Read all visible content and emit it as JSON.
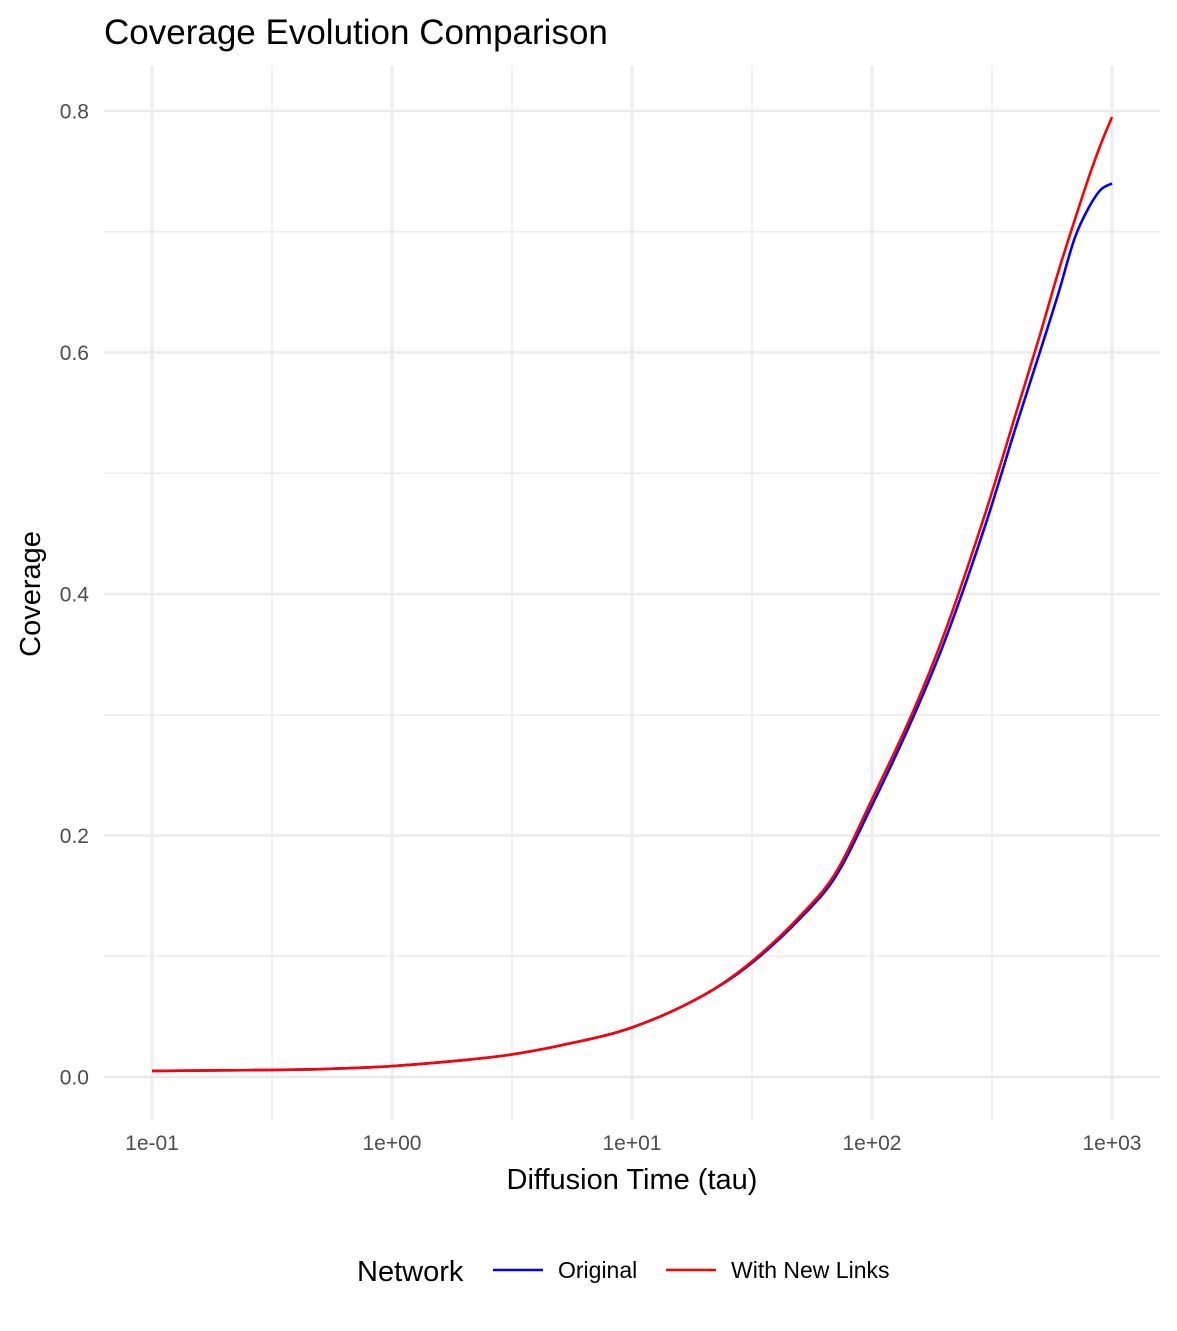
{
  "chart_data": {
    "type": "line",
    "title": "Coverage Evolution Comparison",
    "xlabel": "Diffusion Time (tau)",
    "ylabel": "Coverage",
    "x_scale": "log10",
    "xlim": [
      0.1,
      1000
    ],
    "ylim": [
      0.0,
      0.8
    ],
    "x_ticks": [
      0.1,
      1,
      10,
      100,
      1000
    ],
    "x_tick_labels": [
      "1e-01",
      "1e+00",
      "1e+01",
      "1e+02",
      "1e+03"
    ],
    "y_ticks": [
      0.0,
      0.2,
      0.4,
      0.6,
      0.8
    ],
    "y_tick_labels": [
      "0.0",
      "0.2",
      "0.4",
      "0.6",
      "0.8"
    ],
    "grid": true,
    "legend": {
      "title": "Network",
      "position": "bottom"
    },
    "x": [
      0.1,
      0.2,
      0.5,
      1,
      2,
      3,
      5,
      10,
      20,
      30,
      50,
      70,
      100,
      150,
      200,
      300,
      400,
      500,
      600,
      700,
      800,
      900,
      1000
    ],
    "series": [
      {
        "name": "Original",
        "color": "#0000ff",
        "values": [
          0.005,
          0.0055,
          0.0065,
          0.009,
          0.014,
          0.018,
          0.026,
          0.041,
          0.068,
          0.091,
          0.131,
          0.165,
          0.225,
          0.3,
          0.36,
          0.46,
          0.54,
          0.6,
          0.65,
          0.695,
          0.72,
          0.735,
          0.74
        ]
      },
      {
        "name": "With New Links",
        "color": "#ff0000",
        "values": [
          0.005,
          0.0055,
          0.0065,
          0.009,
          0.014,
          0.018,
          0.026,
          0.041,
          0.068,
          0.092,
          0.133,
          0.168,
          0.23,
          0.305,
          0.367,
          0.47,
          0.551,
          0.614,
          0.668,
          0.71,
          0.745,
          0.773,
          0.795
        ]
      }
    ]
  }
}
